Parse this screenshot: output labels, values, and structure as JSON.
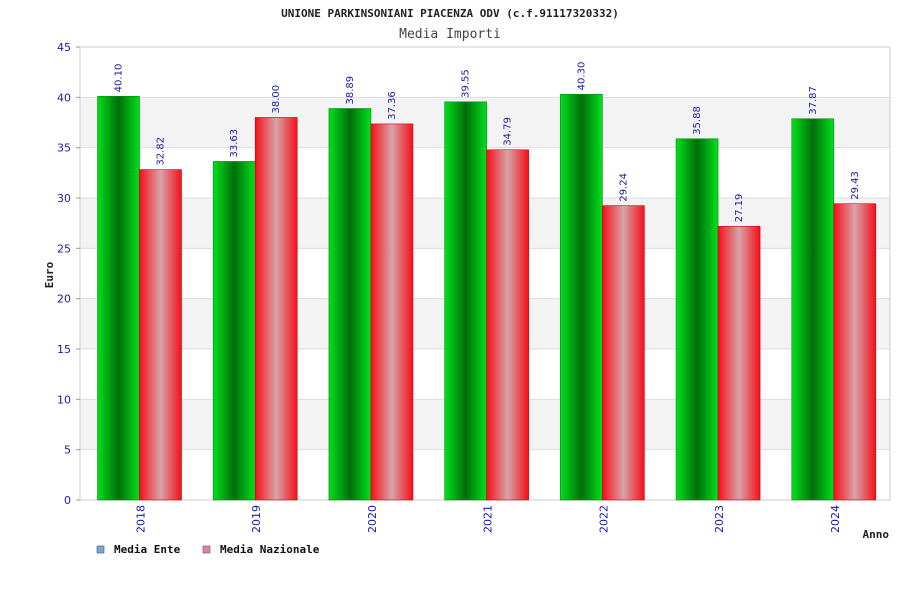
{
  "chart_data": {
    "type": "bar",
    "title": "UNIONE PARKINSONIANI PIACENZA ODV (c.f.91117320332)",
    "subtitle": "Media Importi",
    "xlabel": "Anno",
    "ylabel": "Euro",
    "categories": [
      "2018",
      "2019",
      "2020",
      "2021",
      "2022",
      "2023",
      "2024"
    ],
    "series": [
      {
        "name": "Media Ente",
        "values": [
          40.1,
          33.63,
          38.89,
          39.55,
          40.3,
          35.88,
          37.87
        ],
        "legend_color": "#6fa8dc"
      },
      {
        "name": "Media Nazionale",
        "values": [
          32.82,
          38.0,
          37.36,
          34.79,
          29.24,
          27.19,
          29.43
        ],
        "legend_color": "#e67fb0"
      }
    ],
    "value_labels": [
      [
        "40.10",
        "33.63",
        "38.89",
        "39.55",
        "40.30",
        "35.88",
        "37.87"
      ],
      [
        "32.82",
        "38.00",
        "37.36",
        "34.79",
        "29.24",
        "27.19",
        "29.43"
      ]
    ],
    "ylim": [
      0,
      45
    ],
    "yticks": [
      "0",
      "5",
      "10",
      "15",
      "20",
      "25",
      "30",
      "35",
      "40",
      "45"
    ],
    "grid": true,
    "legend_position": "bottom-left"
  }
}
